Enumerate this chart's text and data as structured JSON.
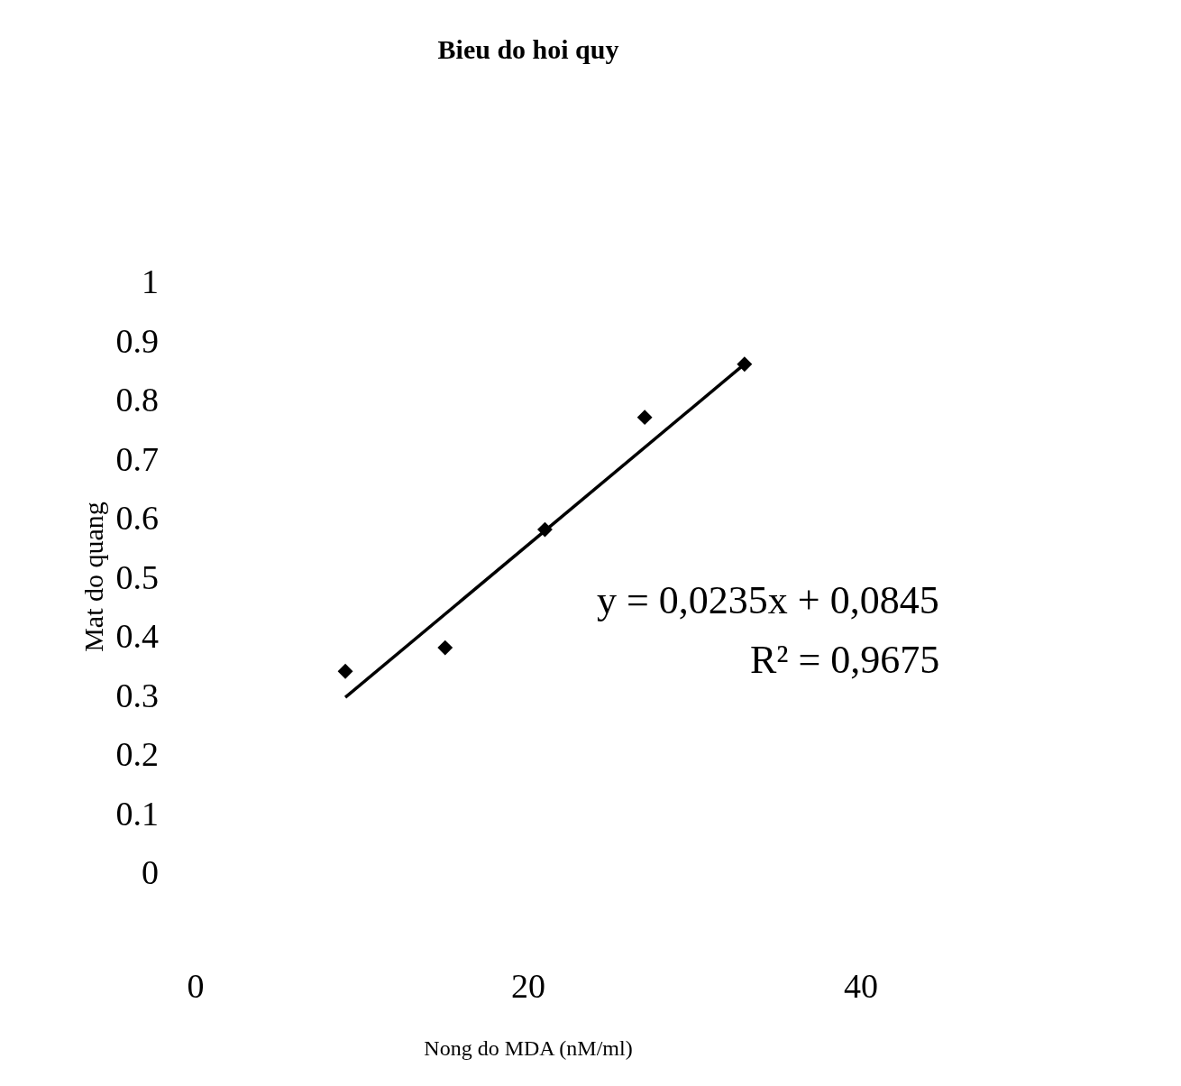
{
  "chart_data": {
    "type": "scatter",
    "title": "Bieu do hoi quy",
    "xlabel": "Nong do MDA (nM/ml)",
    "ylabel": "Mat do quang",
    "x": [
      9,
      15,
      21,
      27,
      33
    ],
    "series": [
      {
        "color": "#000000",
        "marker": "diamond",
        "values": [
          0.34,
          0.38,
          0.58,
          0.77,
          0.86
        ]
      },
      {
        "type": "line",
        "color": "#000000",
        "marker": "none",
        "x": [
          9,
          33
        ],
        "values": [
          0.296,
          0.86
        ]
      }
    ],
    "annotations": [
      "y = 0,0235x + 0,0845",
      "R² = 0,9675"
    ],
    "xlim": [
      0,
      40
    ],
    "xticks": [
      0,
      20,
      40
    ],
    "ylim": [
      0,
      1
    ],
    "yticks": [
      0,
      0.1,
      0.2,
      0.3,
      0.4,
      0.5,
      0.6,
      0.7,
      0.8,
      0.9,
      1
    ]
  }
}
